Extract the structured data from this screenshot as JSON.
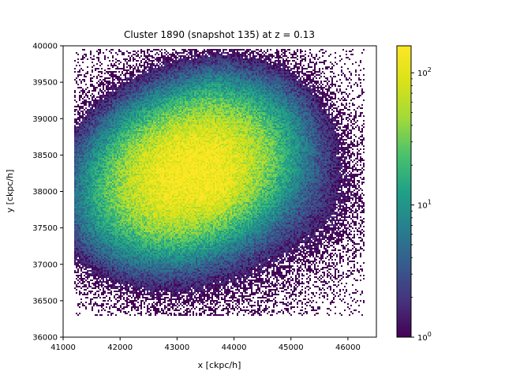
{
  "chart_data": {
    "type": "heatmap",
    "title": "Cluster 1890 (snapshot 135) at z = 0.13",
    "xlabel": "x [ckpc/h]",
    "ylabel": "y [ckpc/h]",
    "xlim": [
      41000,
      46500
    ],
    "ylim": [
      36000,
      40000
    ],
    "x_ticks": [
      41000,
      42000,
      43000,
      44000,
      45000,
      46000
    ],
    "y_ticks": [
      36000,
      36500,
      37000,
      37500,
      38000,
      38500,
      39000,
      39500,
      40000
    ],
    "grid": false,
    "colormap": "viridis",
    "color_scale": "log",
    "colorbar": {
      "lim": [
        1,
        160
      ],
      "ticks": [
        {
          "value": 1,
          "base": "10",
          "exp": "0"
        },
        {
          "value": 10,
          "base": "10",
          "exp": "1"
        },
        {
          "value": 100,
          "base": "10",
          "exp": "2"
        }
      ]
    },
    "components": [
      {
        "cx": 43250,
        "cy": 38280,
        "sx": 720,
        "sy": 520,
        "peak": 160
      },
      {
        "cx": 43750,
        "cy": 38000,
        "sx": 160,
        "sy": 160,
        "peak": 30
      },
      {
        "cx": 43600,
        "cy": 39200,
        "sx": 220,
        "sy": 260,
        "peak": 4
      }
    ],
    "background_extent": {
      "x": [
        41200,
        46300
      ],
      "y": [
        36300,
        39950
      ]
    }
  }
}
